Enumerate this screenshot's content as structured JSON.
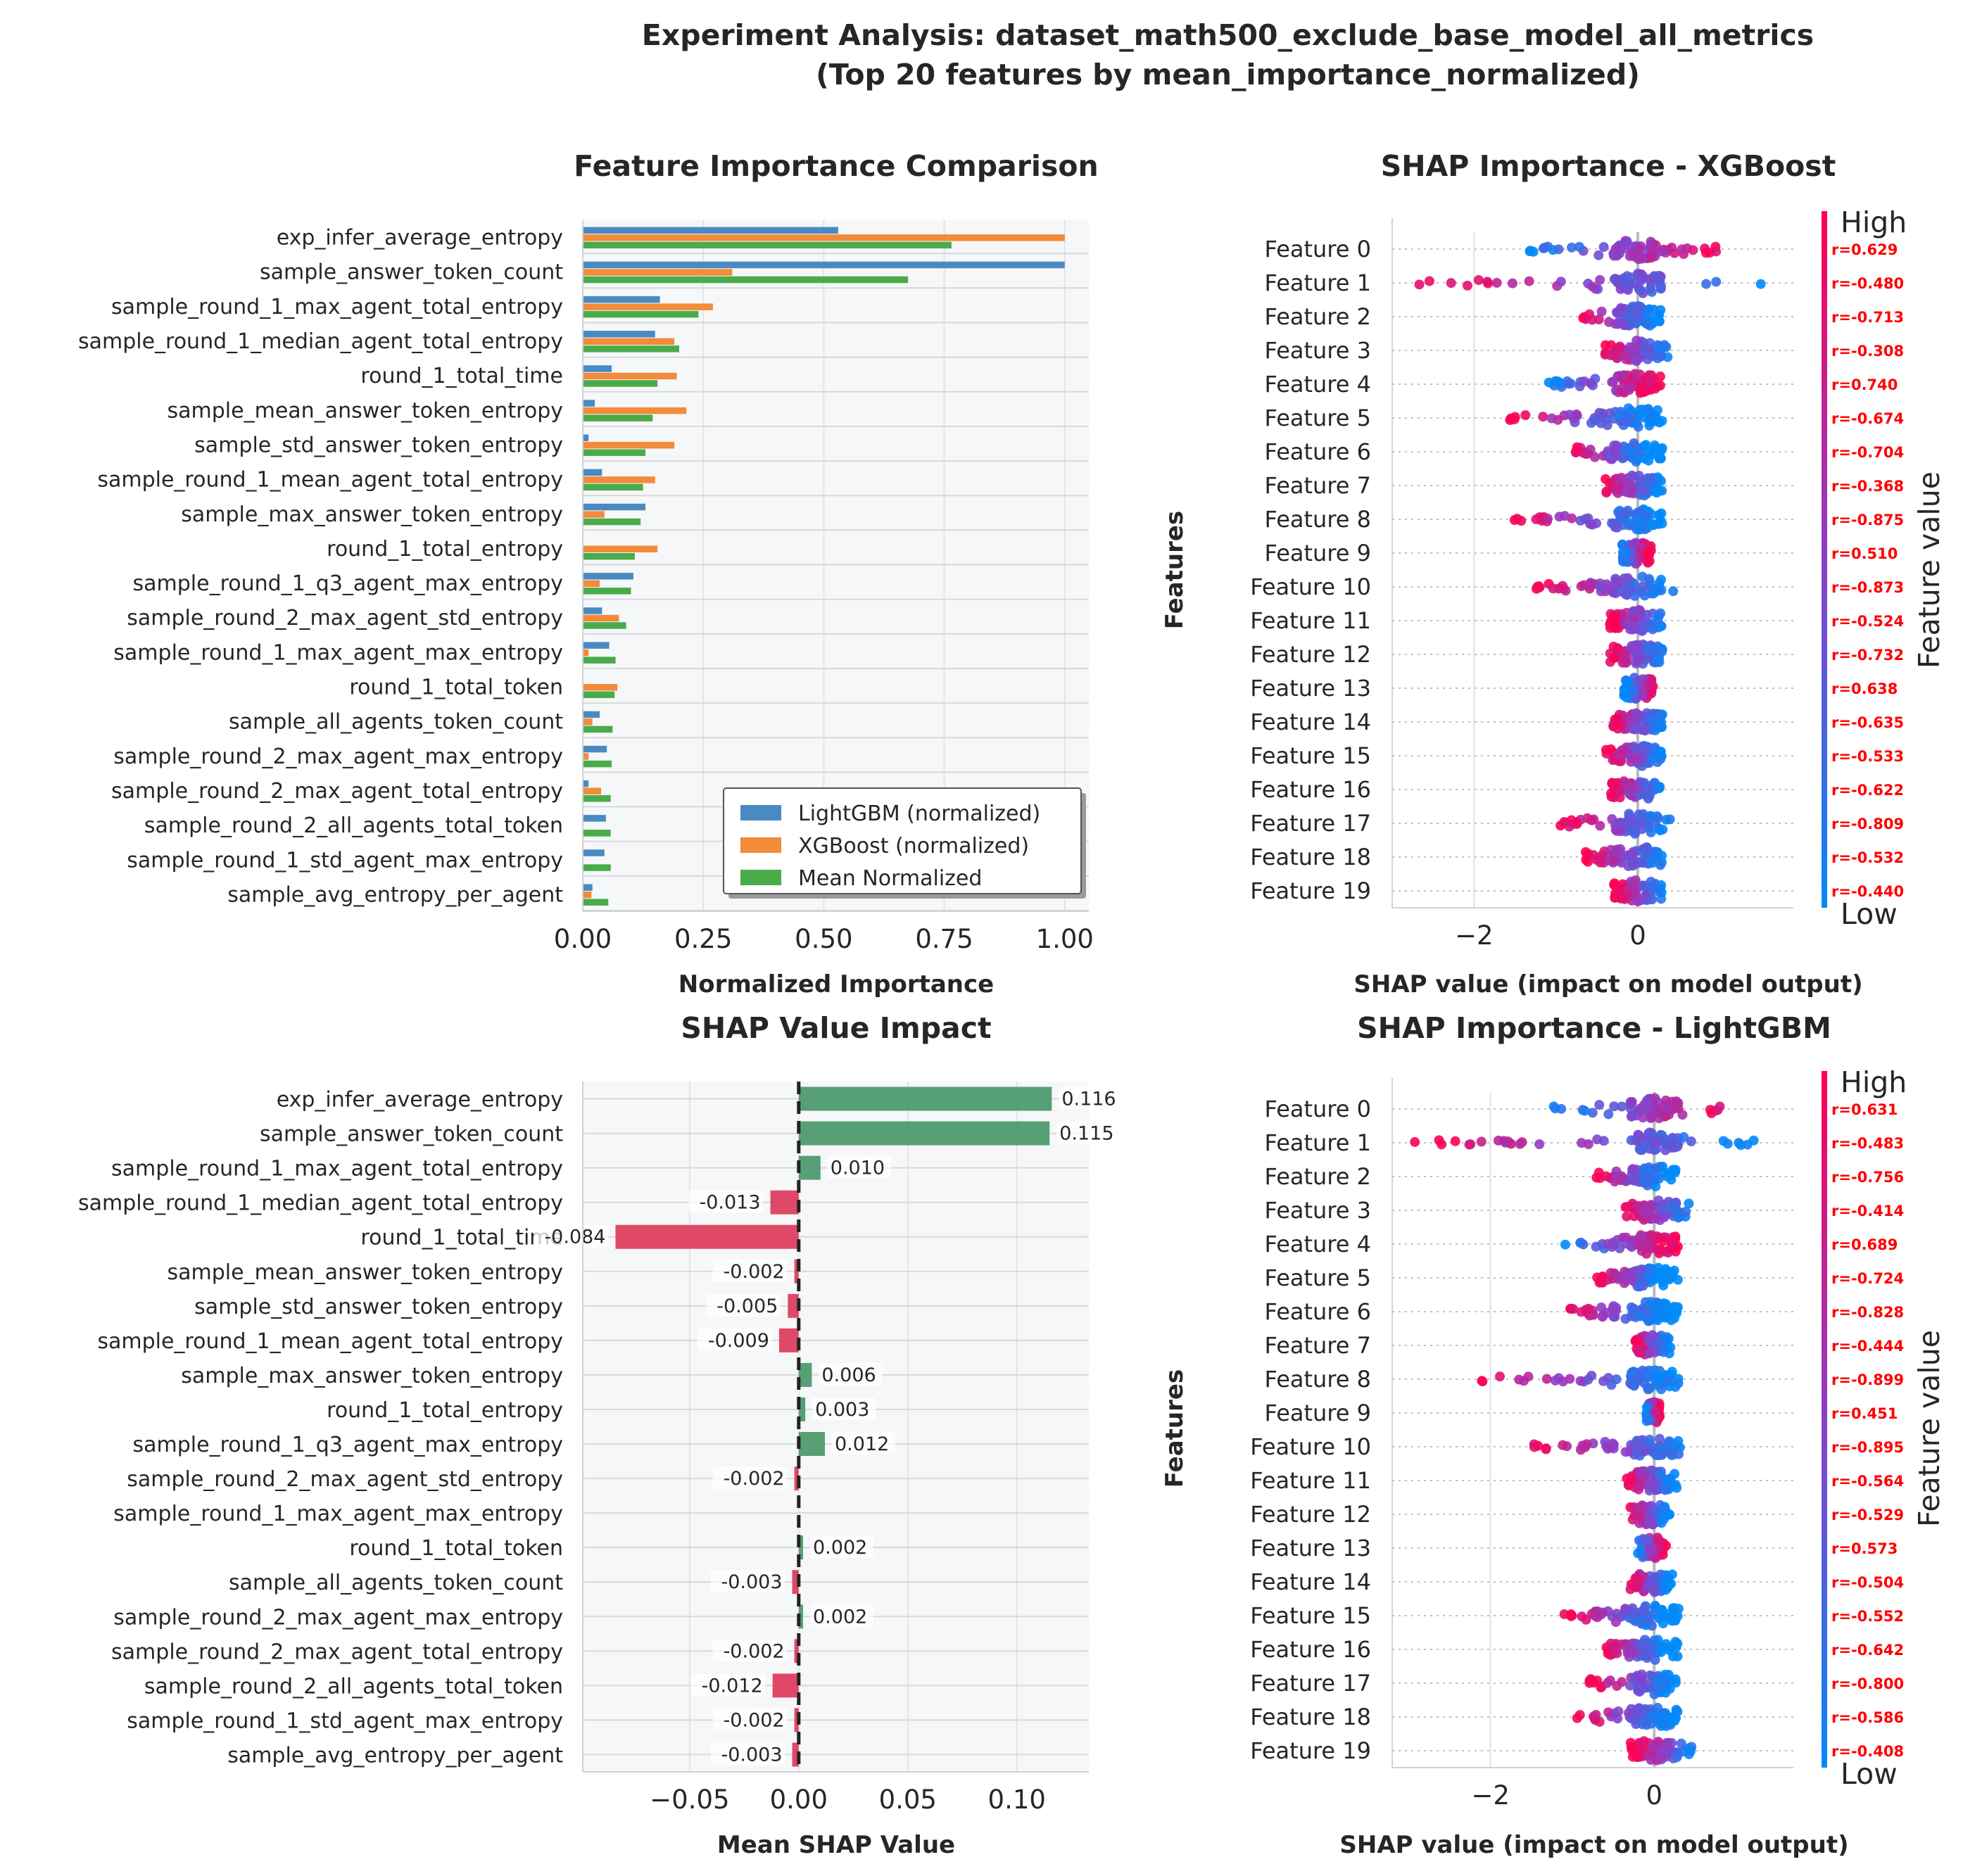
{
  "title_line1": "Experiment Analysis: dataset_math500_exclude_base_model_all_metrics",
  "title_line2": "(Top 20 features by mean_importance_normalized)",
  "colors": {
    "lightgbm": "#4a8ac3",
    "xgboost": "#f28b3a",
    "mean": "#4aab4a",
    "shap_pos": "#4e9a6e",
    "shap_neg": "#dd3f5f",
    "high": "#ff0052",
    "mid": "#8c3fc8",
    "low": "#008afa",
    "corr_text": "#ff0000"
  },
  "chart_data": [
    {
      "id": "feature-importance",
      "type": "bar",
      "title": "Feature Importance Comparison",
      "xlabel": "Normalized Importance",
      "ylabel": "",
      "xlim": [
        0,
        1.05
      ],
      "xticks": [
        "0.00",
        "0.25",
        "0.50",
        "0.75",
        "1.00"
      ],
      "legend_position": "lower-right",
      "categories": [
        "exp_infer_average_entropy",
        "sample_answer_token_count",
        "sample_round_1_max_agent_total_entropy",
        "sample_round_1_median_agent_total_entropy",
        "round_1_total_time",
        "sample_mean_answer_token_entropy",
        "sample_std_answer_token_entropy",
        "sample_round_1_mean_agent_total_entropy",
        "sample_max_answer_token_entropy",
        "round_1_total_entropy",
        "sample_round_1_q3_agent_max_entropy",
        "sample_round_2_max_agent_std_entropy",
        "sample_round_1_max_agent_max_entropy",
        "round_1_total_token",
        "sample_all_agents_token_count",
        "sample_round_2_max_agent_max_entropy",
        "sample_round_2_max_agent_total_entropy",
        "sample_round_2_all_agents_total_token",
        "sample_round_1_std_agent_max_entropy",
        "sample_avg_entropy_per_agent"
      ],
      "series": [
        {
          "name": "LightGBM (normalized)",
          "values": [
            0.53,
            1.0,
            0.16,
            0.15,
            0.06,
            0.025,
            0.012,
            0.04,
            0.13,
            0.0,
            0.105,
            0.04,
            0.055,
            0.0,
            0.035,
            0.05,
            0.012,
            0.048,
            0.045,
            0.02
          ]
        },
        {
          "name": "XGBoost (normalized)",
          "values": [
            1.0,
            0.31,
            0.27,
            0.19,
            0.195,
            0.215,
            0.19,
            0.15,
            0.045,
            0.155,
            0.035,
            0.075,
            0.012,
            0.072,
            0.02,
            0.012,
            0.038,
            0.0,
            0.0,
            0.018
          ]
        },
        {
          "name": "Mean Normalized",
          "values": [
            0.765,
            0.675,
            0.24,
            0.2,
            0.155,
            0.145,
            0.13,
            0.125,
            0.12,
            0.108,
            0.1,
            0.09,
            0.068,
            0.066,
            0.062,
            0.06,
            0.058,
            0.058,
            0.058,
            0.053
          ]
        }
      ]
    },
    {
      "id": "shap-xgboost",
      "type": "scatter",
      "title": "SHAP Importance - XGBoost",
      "xlabel": "SHAP value (impact on model output)",
      "ylabel": "Features",
      "xlim": [
        -3,
        1.9
      ],
      "xticks": [
        "−2",
        "0"
      ],
      "colorbar_label": "Feature value",
      "colorbar_high": "High",
      "colorbar_low": "Low",
      "features": [
        "Feature 0",
        "Feature 1",
        "Feature 2",
        "Feature 3",
        "Feature 4",
        "Feature 5",
        "Feature 6",
        "Feature 7",
        "Feature 8",
        "Feature 9",
        "Feature 10",
        "Feature 11",
        "Feature 12",
        "Feature 13",
        "Feature 14",
        "Feature 15",
        "Feature 16",
        "Feature 17",
        "Feature 18",
        "Feature 19"
      ],
      "correlations": [
        "r=0.629",
        "r=-0.480",
        "r=-0.713",
        "r=-0.308",
        "r=0.740",
        "r=-0.674",
        "r=-0.704",
        "r=-0.368",
        "r=-0.875",
        "r=0.510",
        "r=-0.873",
        "r=-0.524",
        "r=-0.732",
        "r=0.638",
        "r=-0.635",
        "r=-0.533",
        "r=-0.622",
        "r=-0.809",
        "r=-0.532",
        "r=-0.440"
      ],
      "ranges": [
        [
          -1.4,
          1.1
        ],
        [
          -2.8,
          1.6
        ],
        [
          -0.7,
          0.2
        ],
        [
          -0.4,
          0.4
        ],
        [
          -1.1,
          0.25
        ],
        [
          -1.6,
          0.1
        ],
        [
          -0.8,
          0.05
        ],
        [
          -0.4,
          0.25
        ],
        [
          -1.6,
          0.2
        ],
        [
          -0.2,
          0.15
        ],
        [
          -1.25,
          0.45
        ],
        [
          -0.35,
          0.3
        ],
        [
          -0.35,
          0.3
        ],
        [
          -0.15,
          0.2
        ],
        [
          -0.35,
          0.3
        ],
        [
          -0.4,
          0.3
        ],
        [
          -0.35,
          0.3
        ],
        [
          -1.0,
          0.4
        ],
        [
          -0.65,
          0.3
        ],
        [
          -0.3,
          0.3
        ]
      ]
    },
    {
      "id": "shap-impact",
      "type": "bar",
      "title": "SHAP Value Impact",
      "xlabel": "Mean SHAP Value",
      "ylabel": "",
      "xlim": [
        -0.099,
        0.133
      ],
      "xticks": [
        "−0.05",
        "0.00",
        "0.05",
        "0.10"
      ],
      "categories": [
        "exp_infer_average_entropy",
        "sample_answer_token_count",
        "sample_round_1_max_agent_total_entropy",
        "sample_round_1_median_agent_total_entropy",
        "round_1_total_time",
        "sample_mean_answer_token_entropy",
        "sample_std_answer_token_entropy",
        "sample_round_1_mean_agent_total_entropy",
        "sample_max_answer_token_entropy",
        "round_1_total_entropy",
        "sample_round_1_q3_agent_max_entropy",
        "sample_round_2_max_agent_std_entropy",
        "sample_round_1_max_agent_max_entropy",
        "round_1_total_token",
        "sample_all_agents_token_count",
        "sample_round_2_max_agent_max_entropy",
        "sample_round_2_max_agent_total_entropy",
        "sample_round_2_all_agents_total_token",
        "sample_round_1_std_agent_max_entropy",
        "sample_avg_entropy_per_agent"
      ],
      "values": [
        0.116,
        0.115,
        0.01,
        -0.013,
        -0.084,
        -0.002,
        -0.005,
        -0.009,
        0.006,
        0.003,
        0.012,
        -0.002,
        0.0,
        0.002,
        -0.003,
        0.002,
        -0.002,
        -0.012,
        -0.002,
        -0.003
      ],
      "labels": [
        "0.116",
        "0.115",
        "0.010",
        "-0.013",
        "-0.084",
        "-0.002",
        "-0.005",
        "-0.009",
        "0.006",
        "0.003",
        "0.012",
        "-0.002",
        "",
        "0.002",
        "-0.003",
        "0.002",
        "-0.002",
        "-0.012",
        "-0.002",
        "-0.003"
      ]
    },
    {
      "id": "shap-lightgbm",
      "type": "scatter",
      "title": "SHAP Importance - LightGBM",
      "xlabel": "SHAP value (impact on model output)",
      "ylabel": "Features",
      "xlim": [
        -3.2,
        1.7
      ],
      "xticks": [
        "−2",
        "0"
      ],
      "colorbar_label": "Feature value",
      "colorbar_high": "High",
      "colorbar_low": "Low",
      "features": [
        "Feature 0",
        "Feature 1",
        "Feature 2",
        "Feature 3",
        "Feature 4",
        "Feature 5",
        "Feature 6",
        "Feature 7",
        "Feature 8",
        "Feature 9",
        "Feature 10",
        "Feature 11",
        "Feature 12",
        "Feature 13",
        "Feature 14",
        "Feature 15",
        "Feature 16",
        "Feature 17",
        "Feature 18",
        "Feature 19"
      ],
      "correlations": [
        "r=0.631",
        "r=-0.483",
        "r=-0.756",
        "r=-0.414",
        "r=0.689",
        "r=-0.724",
        "r=-0.828",
        "r=-0.444",
        "r=-0.899",
        "r=0.451",
        "r=-0.895",
        "r=-0.564",
        "r=-0.529",
        "r=0.573",
        "r=-0.504",
        "r=-0.552",
        "r=-0.642",
        "r=-0.800",
        "r=-0.586",
        "r=-0.408"
      ],
      "ranges": [
        [
          -1.3,
          0.95
        ],
        [
          -3.0,
          1.45
        ],
        [
          -0.75,
          0.1
        ],
        [
          -0.4,
          0.45
        ],
        [
          -1.1,
          0.3
        ],
        [
          -0.7,
          0.05
        ],
        [
          -1.05,
          0.05
        ],
        [
          -0.25,
          0.15
        ],
        [
          -2.2,
          0.25
        ],
        [
          -0.1,
          0.05
        ],
        [
          -1.6,
          0.5
        ],
        [
          -0.35,
          0.2
        ],
        [
          -0.3,
          0.15
        ],
        [
          -0.2,
          0.1
        ],
        [
          -0.3,
          0.15
        ],
        [
          -1.1,
          0.1
        ],
        [
          -0.6,
          0.1
        ],
        [
          -0.8,
          0.2
        ],
        [
          -0.95,
          0.2
        ],
        [
          -0.25,
          0.5
        ]
      ]
    }
  ]
}
